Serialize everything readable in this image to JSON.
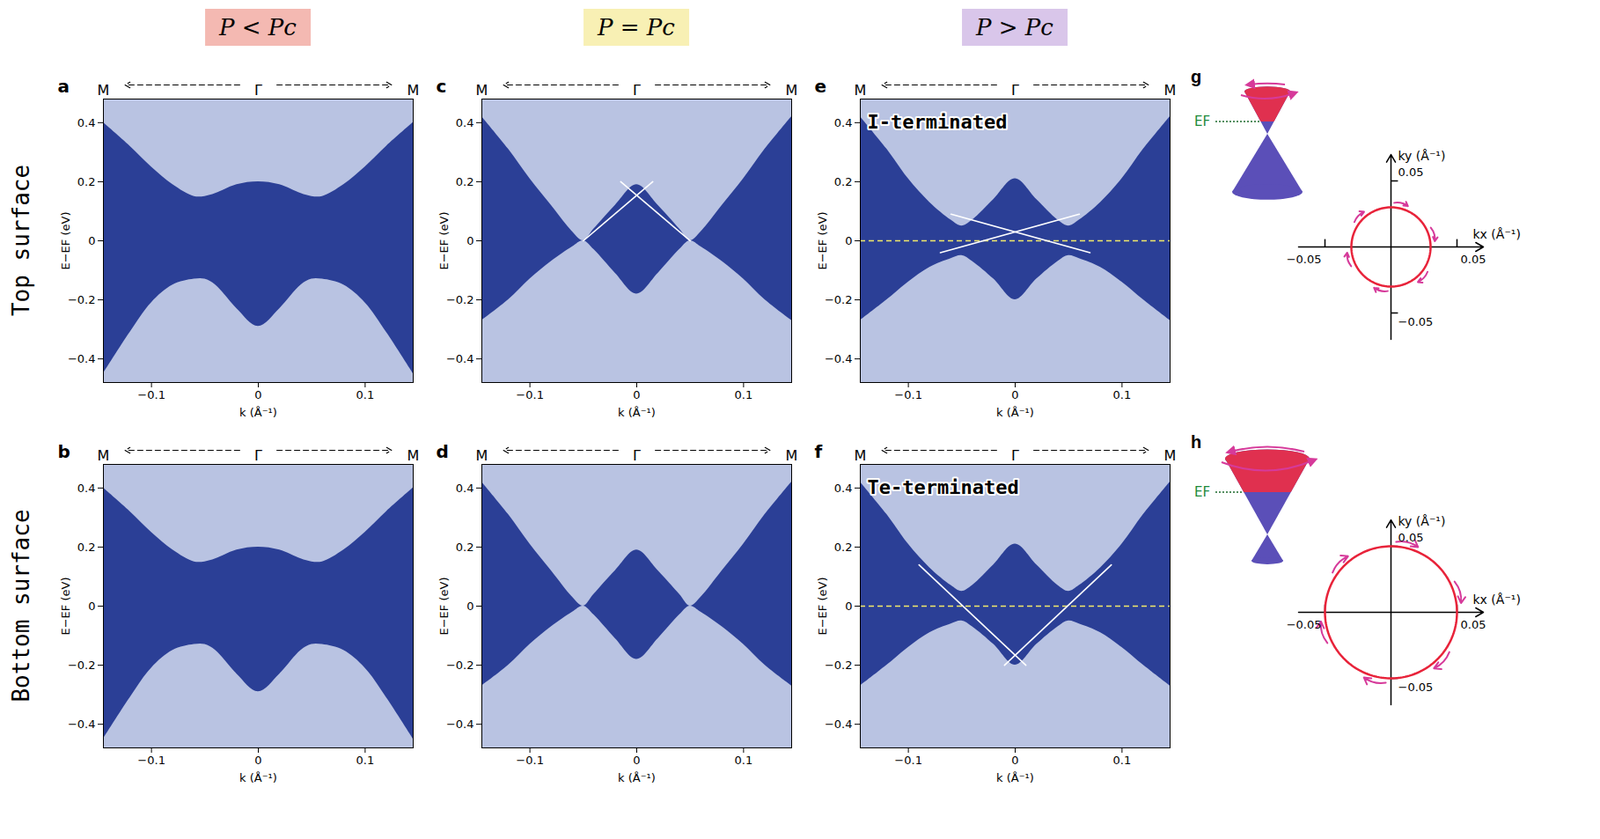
{
  "column_headers": [
    {
      "text": "P < Pc",
      "color": "#f4b9b2"
    },
    {
      "text": "P = Pc",
      "color": "#f8f0b4"
    },
    {
      "text": "P > Pc",
      "color": "#d9c6ea"
    }
  ],
  "row_labels": [
    "Top surface",
    "Bottom surface"
  ],
  "chart_data": [
    {
      "panel": "a",
      "type": "band_structure",
      "path_labels": [
        "M",
        "Γ",
        "M"
      ],
      "x_label": "k (Å⁻¹)",
      "y_label": "E−EF (eV)",
      "xlim": [
        -0.145,
        0.145
      ],
      "ylim": [
        -0.48,
        0.48
      ],
      "xticks": [
        -0.1,
        0,
        0.1
      ],
      "yticks": [
        -0.4,
        -0.2,
        0,
        0.2,
        0.4
      ],
      "color": "#2b3f96",
      "k": [
        -0.145,
        -0.12,
        -0.1,
        -0.08,
        -0.06,
        -0.05,
        -0.04,
        -0.02,
        0,
        0.02,
        0.04,
        0.05,
        0.06,
        0.08,
        0.1,
        0.12,
        0.145
      ],
      "gap_upper": [
        0.4,
        0.32,
        0.25,
        0.19,
        0.15,
        0.15,
        0.16,
        0.19,
        0.2,
        0.19,
        0.16,
        0.15,
        0.15,
        0.19,
        0.25,
        0.32,
        0.4
      ],
      "gap_lower": [
        -0.45,
        -0.31,
        -0.21,
        -0.15,
        -0.13,
        -0.13,
        -0.15,
        -0.23,
        -0.29,
        -0.23,
        -0.15,
        -0.13,
        -0.13,
        -0.15,
        -0.21,
        -0.31,
        -0.45
      ],
      "surface_states": []
    },
    {
      "panel": "b",
      "type": "band_structure",
      "path_labels": [
        "M",
        "Γ",
        "M"
      ],
      "x_label": "k (Å⁻¹)",
      "y_label": "E−EF (eV)",
      "xlim": [
        -0.145,
        0.145
      ],
      "ylim": [
        -0.48,
        0.48
      ],
      "xticks": [
        -0.1,
        0,
        0.1
      ],
      "yticks": [
        -0.4,
        -0.2,
        0,
        0.2,
        0.4
      ],
      "color": "#2b3f96",
      "k": [
        -0.145,
        -0.12,
        -0.1,
        -0.08,
        -0.06,
        -0.05,
        -0.04,
        -0.02,
        0,
        0.02,
        0.04,
        0.05,
        0.06,
        0.08,
        0.1,
        0.12,
        0.145
      ],
      "gap_upper": [
        0.4,
        0.32,
        0.25,
        0.19,
        0.15,
        0.15,
        0.16,
        0.19,
        0.2,
        0.19,
        0.16,
        0.15,
        0.15,
        0.19,
        0.25,
        0.32,
        0.4
      ],
      "gap_lower": [
        -0.45,
        -0.31,
        -0.21,
        -0.15,
        -0.13,
        -0.13,
        -0.15,
        -0.23,
        -0.29,
        -0.23,
        -0.15,
        -0.13,
        -0.13,
        -0.15,
        -0.21,
        -0.31,
        -0.45
      ],
      "surface_states": []
    },
    {
      "panel": "c",
      "type": "band_structure",
      "path_labels": [
        "M",
        "Γ",
        "M"
      ],
      "x_label": "k (Å⁻¹)",
      "y_label": "E−EF (eV)",
      "xlim": [
        -0.145,
        0.145
      ],
      "ylim": [
        -0.48,
        0.48
      ],
      "xticks": [
        -0.1,
        0,
        0.1
      ],
      "yticks": [
        -0.4,
        -0.2,
        0,
        0.2,
        0.4
      ],
      "color": "#2b3f96",
      "k": [
        -0.145,
        -0.12,
        -0.1,
        -0.08,
        -0.06,
        -0.05,
        -0.04,
        -0.02,
        0,
        0.02,
        0.04,
        0.05,
        0.06,
        0.08,
        0.1,
        0.12,
        0.145
      ],
      "gap_upper": [
        0.42,
        0.31,
        0.21,
        0.12,
        0.03,
        0.0,
        0.04,
        0.12,
        0.19,
        0.12,
        0.04,
        0.0,
        0.03,
        0.12,
        0.21,
        0.31,
        0.42
      ],
      "gap_lower": [
        -0.27,
        -0.2,
        -0.13,
        -0.07,
        -0.02,
        0.0,
        -0.03,
        -0.11,
        -0.18,
        -0.11,
        -0.03,
        0.0,
        -0.02,
        -0.07,
        -0.13,
        -0.2,
        -0.27
      ],
      "surface_states": [
        {
          "k": [
            -0.05,
            0.015
          ],
          "E": [
            0.0,
            0.2
          ]
        },
        {
          "k": [
            0.05,
            -0.015
          ],
          "E": [
            0.0,
            0.2
          ]
        }
      ]
    },
    {
      "panel": "d",
      "type": "band_structure",
      "path_labels": [
        "M",
        "Γ",
        "M"
      ],
      "x_label": "k (Å⁻¹)",
      "y_label": "E−EF (eV)",
      "xlim": [
        -0.145,
        0.145
      ],
      "ylim": [
        -0.48,
        0.48
      ],
      "xticks": [
        -0.1,
        0,
        0.1
      ],
      "yticks": [
        -0.4,
        -0.2,
        0,
        0.2,
        0.4
      ],
      "color": "#2b3f96",
      "k": [
        -0.145,
        -0.12,
        -0.1,
        -0.08,
        -0.06,
        -0.05,
        -0.04,
        -0.02,
        0,
        0.02,
        0.04,
        0.05,
        0.06,
        0.08,
        0.1,
        0.12,
        0.145
      ],
      "gap_upper": [
        0.42,
        0.31,
        0.21,
        0.12,
        0.03,
        0.0,
        0.04,
        0.12,
        0.19,
        0.12,
        0.04,
        0.0,
        0.03,
        0.12,
        0.21,
        0.31,
        0.42
      ],
      "gap_lower": [
        -0.27,
        -0.2,
        -0.13,
        -0.07,
        -0.02,
        0.0,
        -0.03,
        -0.11,
        -0.18,
        -0.11,
        -0.03,
        0.0,
        -0.02,
        -0.07,
        -0.13,
        -0.2,
        -0.27
      ],
      "surface_states": []
    },
    {
      "panel": "e",
      "type": "band_structure",
      "path_labels": [
        "M",
        "Γ",
        "M"
      ],
      "x_label": "k (Å⁻¹)",
      "y_label": "E−EF (eV)",
      "xlim": [
        -0.145,
        0.145
      ],
      "ylim": [
        -0.48,
        0.48
      ],
      "xticks": [
        -0.1,
        0,
        0.1
      ],
      "yticks": [
        -0.4,
        -0.2,
        0,
        0.2,
        0.4
      ],
      "color": "#2b3f96",
      "annotation": "I-terminated",
      "fermi_level": 0,
      "k": [
        -0.145,
        -0.12,
        -0.1,
        -0.08,
        -0.06,
        -0.05,
        -0.04,
        -0.02,
        0,
        0.02,
        0.04,
        0.05,
        0.06,
        0.08,
        0.1,
        0.12,
        0.145
      ],
      "gap_upper": [
        0.42,
        0.31,
        0.21,
        0.13,
        0.07,
        0.05,
        0.07,
        0.14,
        0.21,
        0.14,
        0.07,
        0.05,
        0.07,
        0.13,
        0.21,
        0.31,
        0.42
      ],
      "gap_lower": [
        -0.27,
        -0.2,
        -0.14,
        -0.09,
        -0.06,
        -0.05,
        -0.07,
        -0.13,
        -0.2,
        -0.13,
        -0.07,
        -0.05,
        -0.06,
        -0.09,
        -0.14,
        -0.2,
        -0.27
      ],
      "surface_states": [
        {
          "k": [
            -0.07,
            0.06
          ],
          "E": [
            -0.04,
            0.09
          ]
        },
        {
          "k": [
            0.07,
            -0.06
          ],
          "E": [
            -0.04,
            0.09
          ]
        }
      ]
    },
    {
      "panel": "f",
      "type": "band_structure",
      "path_labels": [
        "M",
        "Γ",
        "M"
      ],
      "x_label": "k (Å⁻¹)",
      "y_label": "E−EF (eV)",
      "xlim": [
        -0.145,
        0.145
      ],
      "ylim": [
        -0.48,
        0.48
      ],
      "xticks": [
        -0.1,
        0,
        0.1
      ],
      "yticks": [
        -0.4,
        -0.2,
        0,
        0.2,
        0.4
      ],
      "color": "#2b3f96",
      "annotation": "Te-terminated",
      "fermi_level": 0,
      "k": [
        -0.145,
        -0.12,
        -0.1,
        -0.08,
        -0.06,
        -0.05,
        -0.04,
        -0.02,
        0,
        0.02,
        0.04,
        0.05,
        0.06,
        0.08,
        0.1,
        0.12,
        0.145
      ],
      "gap_upper": [
        0.42,
        0.31,
        0.21,
        0.13,
        0.07,
        0.05,
        0.07,
        0.14,
        0.21,
        0.14,
        0.07,
        0.05,
        0.07,
        0.13,
        0.21,
        0.31,
        0.42
      ],
      "gap_lower": [
        -0.27,
        -0.2,
        -0.14,
        -0.09,
        -0.06,
        -0.05,
        -0.07,
        -0.13,
        -0.2,
        -0.13,
        -0.07,
        -0.05,
        -0.06,
        -0.09,
        -0.14,
        -0.2,
        -0.27
      ],
      "surface_states": [
        {
          "k": [
            -0.09,
            0.01
          ],
          "E": [
            0.14,
            -0.2
          ]
        },
        {
          "k": [
            0.09,
            -0.01
          ],
          "E": [
            0.14,
            -0.2
          ]
        }
      ]
    },
    {
      "panel": "g",
      "type": "fermi_surface",
      "x_label": "kx (Å⁻¹)",
      "y_label": "ky (Å⁻¹)",
      "inset_label": "EF",
      "xlim": [
        -0.07,
        0.07
      ],
      "ylim": [
        -0.07,
        0.07
      ],
      "xticks": [
        -0.05,
        0.05
      ],
      "yticks": [
        -0.05,
        0.05
      ],
      "fermi_radius": 0.03,
      "color": "#e8233a"
    },
    {
      "panel": "h",
      "type": "fermi_surface",
      "x_label": "kx (Å⁻¹)",
      "y_label": "ky (Å⁻¹)",
      "inset_label": "EF",
      "xlim": [
        -0.07,
        0.07
      ],
      "ylim": [
        -0.07,
        0.07
      ],
      "xticks": [
        -0.05,
        0.05
      ],
      "yticks": [
        -0.05,
        0.05
      ],
      "fermi_radius": 0.05,
      "color": "#e8233a"
    }
  ]
}
